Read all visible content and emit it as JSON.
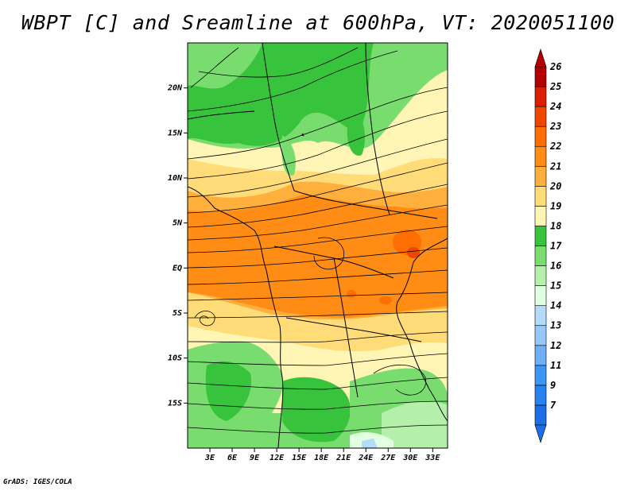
{
  "title": "WBPT [C] and Sreamline at 600hPa, VT: 2020051100",
  "credit": "GrADS: IGES/COLA",
  "map": {
    "lon_range": [
      0,
      35
    ],
    "lat_range": [
      -20,
      25
    ],
    "lat_ticks": [
      {
        "value": 20,
        "label": "20N"
      },
      {
        "value": 15,
        "label": "15N"
      },
      {
        "value": 10,
        "label": "10N"
      },
      {
        "value": 5,
        "label": "5N"
      },
      {
        "value": 0,
        "label": "EQ"
      },
      {
        "value": -5,
        "label": "5S"
      },
      {
        "value": -10,
        "label": "10S"
      },
      {
        "value": -15,
        "label": "15S"
      }
    ],
    "lon_ticks": [
      {
        "value": 3,
        "label": "3E"
      },
      {
        "value": 6,
        "label": "6E"
      },
      {
        "value": 9,
        "label": "9E"
      },
      {
        "value": 12,
        "label": "12E"
      },
      {
        "value": 15,
        "label": "15E"
      },
      {
        "value": 18,
        "label": "18E"
      },
      {
        "value": 21,
        "label": "21E"
      },
      {
        "value": 24,
        "label": "24E"
      },
      {
        "value": 27,
        "label": "27E"
      },
      {
        "value": 30,
        "label": "30E"
      },
      {
        "value": 33,
        "label": "33E"
      }
    ]
  },
  "colorbar": {
    "levels": [
      {
        "label": "7",
        "color": "#1e6ee6"
      },
      {
        "label": "9",
        "color": "#2882f0"
      },
      {
        "label": "11",
        "color": "#3c96f5"
      },
      {
        "label": "12",
        "color": "#6eaff5"
      },
      {
        "label": "13",
        "color": "#96c8fa"
      },
      {
        "label": "14",
        "color": "#b4dcfa"
      },
      {
        "label": "15",
        "color": "#e1ffe1"
      },
      {
        "label": "16",
        "color": "#b4f0aa"
      },
      {
        "label": "17",
        "color": "#78dc6e"
      },
      {
        "label": "18",
        "color": "#37c33c"
      },
      {
        "label": "19",
        "color": "#fff5b4"
      },
      {
        "label": "20",
        "color": "#ffdc78"
      },
      {
        "label": "21",
        "color": "#ffaf3c"
      },
      {
        "label": "22",
        "color": "#ff8c14"
      },
      {
        "label": "23",
        "color": "#ff6e00"
      },
      {
        "label": "24",
        "color": "#f04600"
      },
      {
        "label": "25",
        "color": "#dc1e00"
      },
      {
        "label": "26",
        "color": "#b40000"
      }
    ],
    "top_color": "#b40000",
    "bottom_color": "#1e6ee6"
  }
}
